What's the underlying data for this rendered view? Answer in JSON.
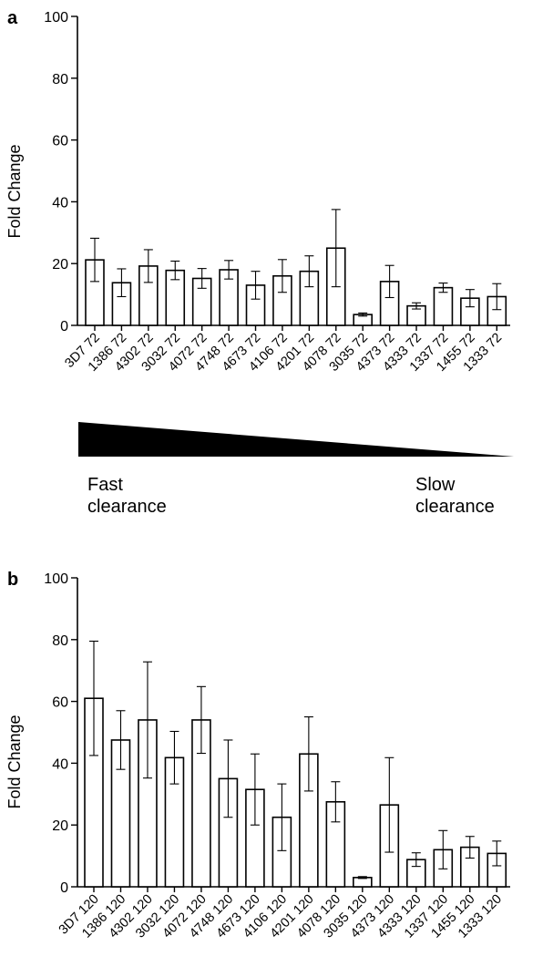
{
  "panels": [
    {
      "letter": "a",
      "chart_data": {
        "type": "bar",
        "ylabel": "Fold Change",
        "ylim": [
          0,
          100
        ],
        "yticks": [
          0,
          20,
          40,
          60,
          80,
          100
        ],
        "categories": [
          "3D7 72",
          "1386 72",
          "4302 72",
          "3032 72",
          "4072 72",
          "4748 72",
          "4673 72",
          "4106 72",
          "4201 72",
          "4078 72",
          "3035 72",
          "4373 72",
          "4333 72",
          "1337 72",
          "1455 72",
          "1333 72"
        ],
        "values": [
          21.2,
          13.8,
          19.2,
          17.8,
          15.2,
          18.0,
          13.0,
          16.0,
          17.5,
          25.0,
          3.5,
          14.2,
          6.3,
          12.2,
          8.8,
          9.3
        ],
        "error": [
          7.0,
          4.5,
          5.3,
          3.0,
          3.2,
          3.0,
          4.5,
          5.3,
          5.0,
          12.5,
          0.5,
          5.2,
          1.0,
          1.5,
          2.8,
          4.2
        ],
        "bar_fill": "#ffffff",
        "bar_stroke": "#000000"
      }
    },
    {
      "letter": "b",
      "chart_data": {
        "type": "bar",
        "ylabel": "Fold Change",
        "ylim": [
          0,
          100
        ],
        "yticks": [
          0,
          20,
          40,
          60,
          80,
          100
        ],
        "categories": [
          "3D7 120",
          "1386 120",
          "4302 120",
          "3032 120",
          "4072 120",
          "4748 120",
          "4673 120",
          "4106 120",
          "4201 120",
          "4078 120",
          "3035 120",
          "4373 120",
          "4333 120",
          "1337 120",
          "1455 120",
          "1333 120"
        ],
        "values": [
          61.0,
          47.5,
          54.0,
          41.8,
          54.0,
          35.0,
          31.5,
          22.5,
          43.0,
          27.5,
          3.0,
          26.5,
          8.8,
          12.0,
          12.8,
          10.8
        ],
        "error": [
          18.5,
          9.5,
          18.8,
          8.5,
          10.8,
          12.5,
          11.5,
          10.8,
          12.0,
          6.5,
          0.3,
          15.3,
          2.2,
          6.2,
          3.5,
          4.0
        ],
        "bar_fill": "#ffffff",
        "bar_stroke": "#000000"
      }
    }
  ],
  "gradient": {
    "left_label_line1": "Fast",
    "left_label_line2": "clearance",
    "right_label_line1": "Slow",
    "right_label_line2": "clearance",
    "fill": "#000000"
  }
}
